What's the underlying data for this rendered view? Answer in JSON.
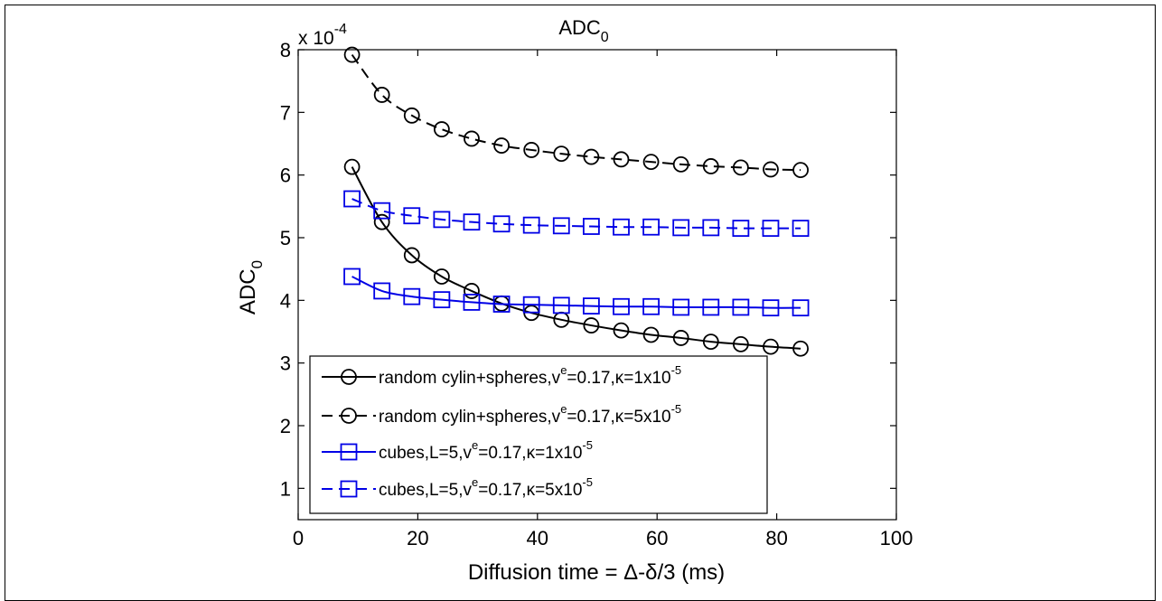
{
  "chart_data": {
    "type": "line",
    "title": "ADC",
    "title_sub": "0",
    "ylabel": "ADC",
    "ylabel_sub": "0",
    "xlabel": "Diffusion time = Δ-δ/3 (ms)",
    "y_exponent_prefix": "x 10",
    "y_exponent_power": "-4",
    "xlim": [
      0,
      100
    ],
    "ylim": [
      0.5,
      8.0
    ],
    "x_ticks": [
      0,
      20,
      40,
      60,
      80,
      100
    ],
    "y_ticks": [
      1,
      2,
      3,
      4,
      5,
      6,
      7,
      8
    ],
    "legend_position": "bottom-left",
    "x": [
      9,
      14,
      19,
      24,
      29,
      34,
      39,
      44,
      49,
      54,
      59,
      64,
      69,
      74,
      79,
      84
    ],
    "series": [
      {
        "name": "random cylin+spheres,v",
        "name_sup": "e",
        "name_tail": "=0.17,κ=1x10",
        "name_tail_sup": "-5",
        "color": "#000000",
        "dashed": false,
        "marker": "circle",
        "values": [
          6.13,
          5.25,
          4.72,
          4.38,
          4.15,
          3.95,
          3.8,
          3.69,
          3.6,
          3.52,
          3.45,
          3.4,
          3.34,
          3.3,
          3.26,
          3.23
        ]
      },
      {
        "name": "random cylin+spheres,v",
        "name_sup": "e",
        "name_tail": "=0.17,κ=5x10",
        "name_tail_sup": "-5",
        "color": "#000000",
        "dashed": true,
        "marker": "circle",
        "values": [
          7.92,
          7.28,
          6.95,
          6.73,
          6.58,
          6.47,
          6.4,
          6.34,
          6.29,
          6.25,
          6.21,
          6.17,
          6.14,
          6.12,
          6.09,
          6.08
        ]
      },
      {
        "name": "cubes,L=5,v",
        "name_sup": "e",
        "name_tail": "=0.17,κ=1x10",
        "name_tail_sup": "-5",
        "color": "#0000e6",
        "dashed": false,
        "marker": "square",
        "values": [
          4.38,
          4.15,
          4.06,
          4.01,
          3.97,
          3.94,
          3.93,
          3.92,
          3.91,
          3.9,
          3.9,
          3.89,
          3.89,
          3.89,
          3.88,
          3.88
        ]
      },
      {
        "name": "cubes,L=5,v",
        "name_sup": "e",
        "name_tail": "=0.17,κ=5x10",
        "name_tail_sup": "-5",
        "color": "#0000e6",
        "dashed": true,
        "marker": "square",
        "values": [
          5.62,
          5.43,
          5.35,
          5.29,
          5.25,
          5.22,
          5.2,
          5.19,
          5.18,
          5.17,
          5.17,
          5.16,
          5.16,
          5.15,
          5.15,
          5.15
        ]
      }
    ]
  }
}
